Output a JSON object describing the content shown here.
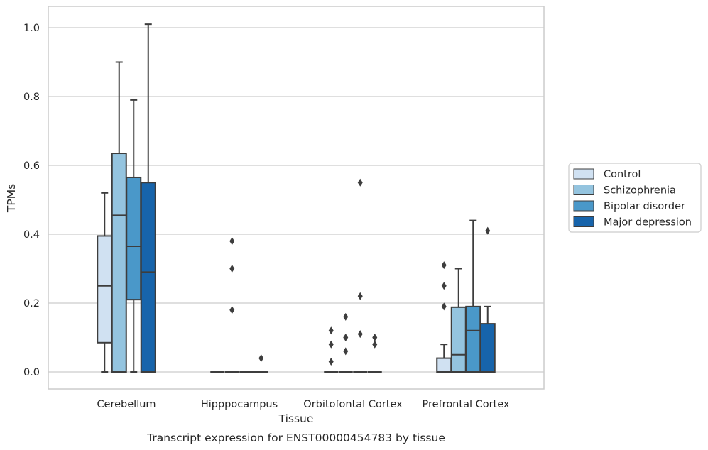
{
  "chart_data": {
    "type": "box",
    "title": "",
    "caption": "Transcript expression for ENST00000454783 by tissue",
    "xlabel": "Tissue",
    "ylabel": "TPMs",
    "ylim": [
      -0.05,
      1.06
    ],
    "yticks": [
      "0.0",
      "0.2",
      "0.4",
      "0.6",
      "0.8",
      "1.0"
    ],
    "grid": "horizontal",
    "legend_placement": "right",
    "categories": [
      "Cerebellum",
      "Hipppocampus",
      "Orbitofontal Cortex",
      "Prefrontal Cortex"
    ],
    "series": [
      {
        "name": "Control",
        "color": "#d0e1f2",
        "boxes": [
          {
            "q1": 0.085,
            "median": 0.25,
            "q3": 0.395,
            "whisker_low": 0.0,
            "whisker_high": 0.52,
            "outliers": []
          },
          {
            "q1": 0.0,
            "median": 0.0,
            "q3": 0.0,
            "whisker_low": 0.0,
            "whisker_high": 0.0,
            "outliers": []
          },
          {
            "q1": 0.0,
            "median": 0.0,
            "q3": 0.0,
            "whisker_low": 0.0,
            "whisker_high": 0.0,
            "outliers": [
              0.03,
              0.08,
              0.12
            ]
          },
          {
            "q1": 0.0,
            "median": 0.0,
            "q3": 0.04,
            "whisker_low": 0.0,
            "whisker_high": 0.08,
            "outliers": [
              0.19,
              0.25,
              0.31
            ]
          }
        ]
      },
      {
        "name": "Schizophrenia",
        "color": "#94c4df",
        "boxes": [
          {
            "q1": 0.0,
            "median": 0.455,
            "q3": 0.635,
            "whisker_low": 0.0,
            "whisker_high": 0.9,
            "outliers": []
          },
          {
            "q1": 0.0,
            "median": 0.0,
            "q3": 0.0,
            "whisker_low": 0.0,
            "whisker_high": 0.0,
            "outliers": [
              0.18,
              0.3,
              0.38
            ]
          },
          {
            "q1": 0.0,
            "median": 0.0,
            "q3": 0.0,
            "whisker_low": 0.0,
            "whisker_high": 0.0,
            "outliers": [
              0.06,
              0.1,
              0.16
            ]
          },
          {
            "q1": 0.0,
            "median": 0.05,
            "q3": 0.188,
            "whisker_low": 0.0,
            "whisker_high": 0.3,
            "outliers": []
          }
        ]
      },
      {
        "name": "Bipolar disorder",
        "color": "#4a98c9",
        "boxes": [
          {
            "q1": 0.21,
            "median": 0.365,
            "q3": 0.565,
            "whisker_low": 0.0,
            "whisker_high": 0.79,
            "outliers": []
          },
          {
            "q1": 0.0,
            "median": 0.0,
            "q3": 0.0,
            "whisker_low": 0.0,
            "whisker_high": 0.0,
            "outliers": []
          },
          {
            "q1": 0.0,
            "median": 0.0,
            "q3": 0.0,
            "whisker_low": 0.0,
            "whisker_high": 0.0,
            "outliers": [
              0.11,
              0.22,
              0.55
            ]
          },
          {
            "q1": 0.0,
            "median": 0.12,
            "q3": 0.19,
            "whisker_low": 0.0,
            "whisker_high": 0.44,
            "outliers": []
          }
        ]
      },
      {
        "name": "Major depression",
        "color": "#1764ab",
        "boxes": [
          {
            "q1": 0.0,
            "median": 0.29,
            "q3": 0.55,
            "whisker_low": 0.0,
            "whisker_high": 1.01,
            "outliers": []
          },
          {
            "q1": 0.0,
            "median": 0.0,
            "q3": 0.0,
            "whisker_low": 0.0,
            "whisker_high": 0.0,
            "outliers": [
              0.04
            ]
          },
          {
            "q1": 0.0,
            "median": 0.0,
            "q3": 0.0,
            "whisker_low": 0.0,
            "whisker_high": 0.0,
            "outliers": [
              0.08,
              0.1
            ]
          },
          {
            "q1": 0.0,
            "median": 0.0,
            "q3": 0.14,
            "whisker_low": 0.0,
            "whisker_high": 0.19,
            "outliers": [
              0.41
            ]
          }
        ]
      }
    ]
  }
}
